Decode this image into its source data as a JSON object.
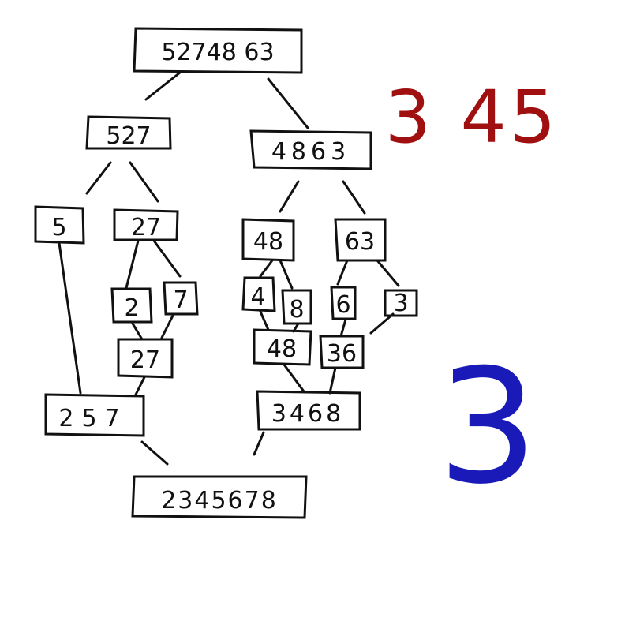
{
  "colors": {
    "ink": "#111111",
    "red_note": "#a01010",
    "blue_note": "#1a1ab8"
  },
  "nodes": {
    "root": "52748 63",
    "left_half": "527",
    "right_half": "4863",
    "n5": "5",
    "n27": "27",
    "n48": "48",
    "n63": "63",
    "n2": "2",
    "n7": "7",
    "n4": "4",
    "n8": "8",
    "n6": "6",
    "n3": "3",
    "m27": "27",
    "m48": "48",
    "m36": "36",
    "m257": "257",
    "m3468": "3468",
    "result": "2345678"
  },
  "notes": {
    "red": "3 45",
    "blue": "3"
  }
}
